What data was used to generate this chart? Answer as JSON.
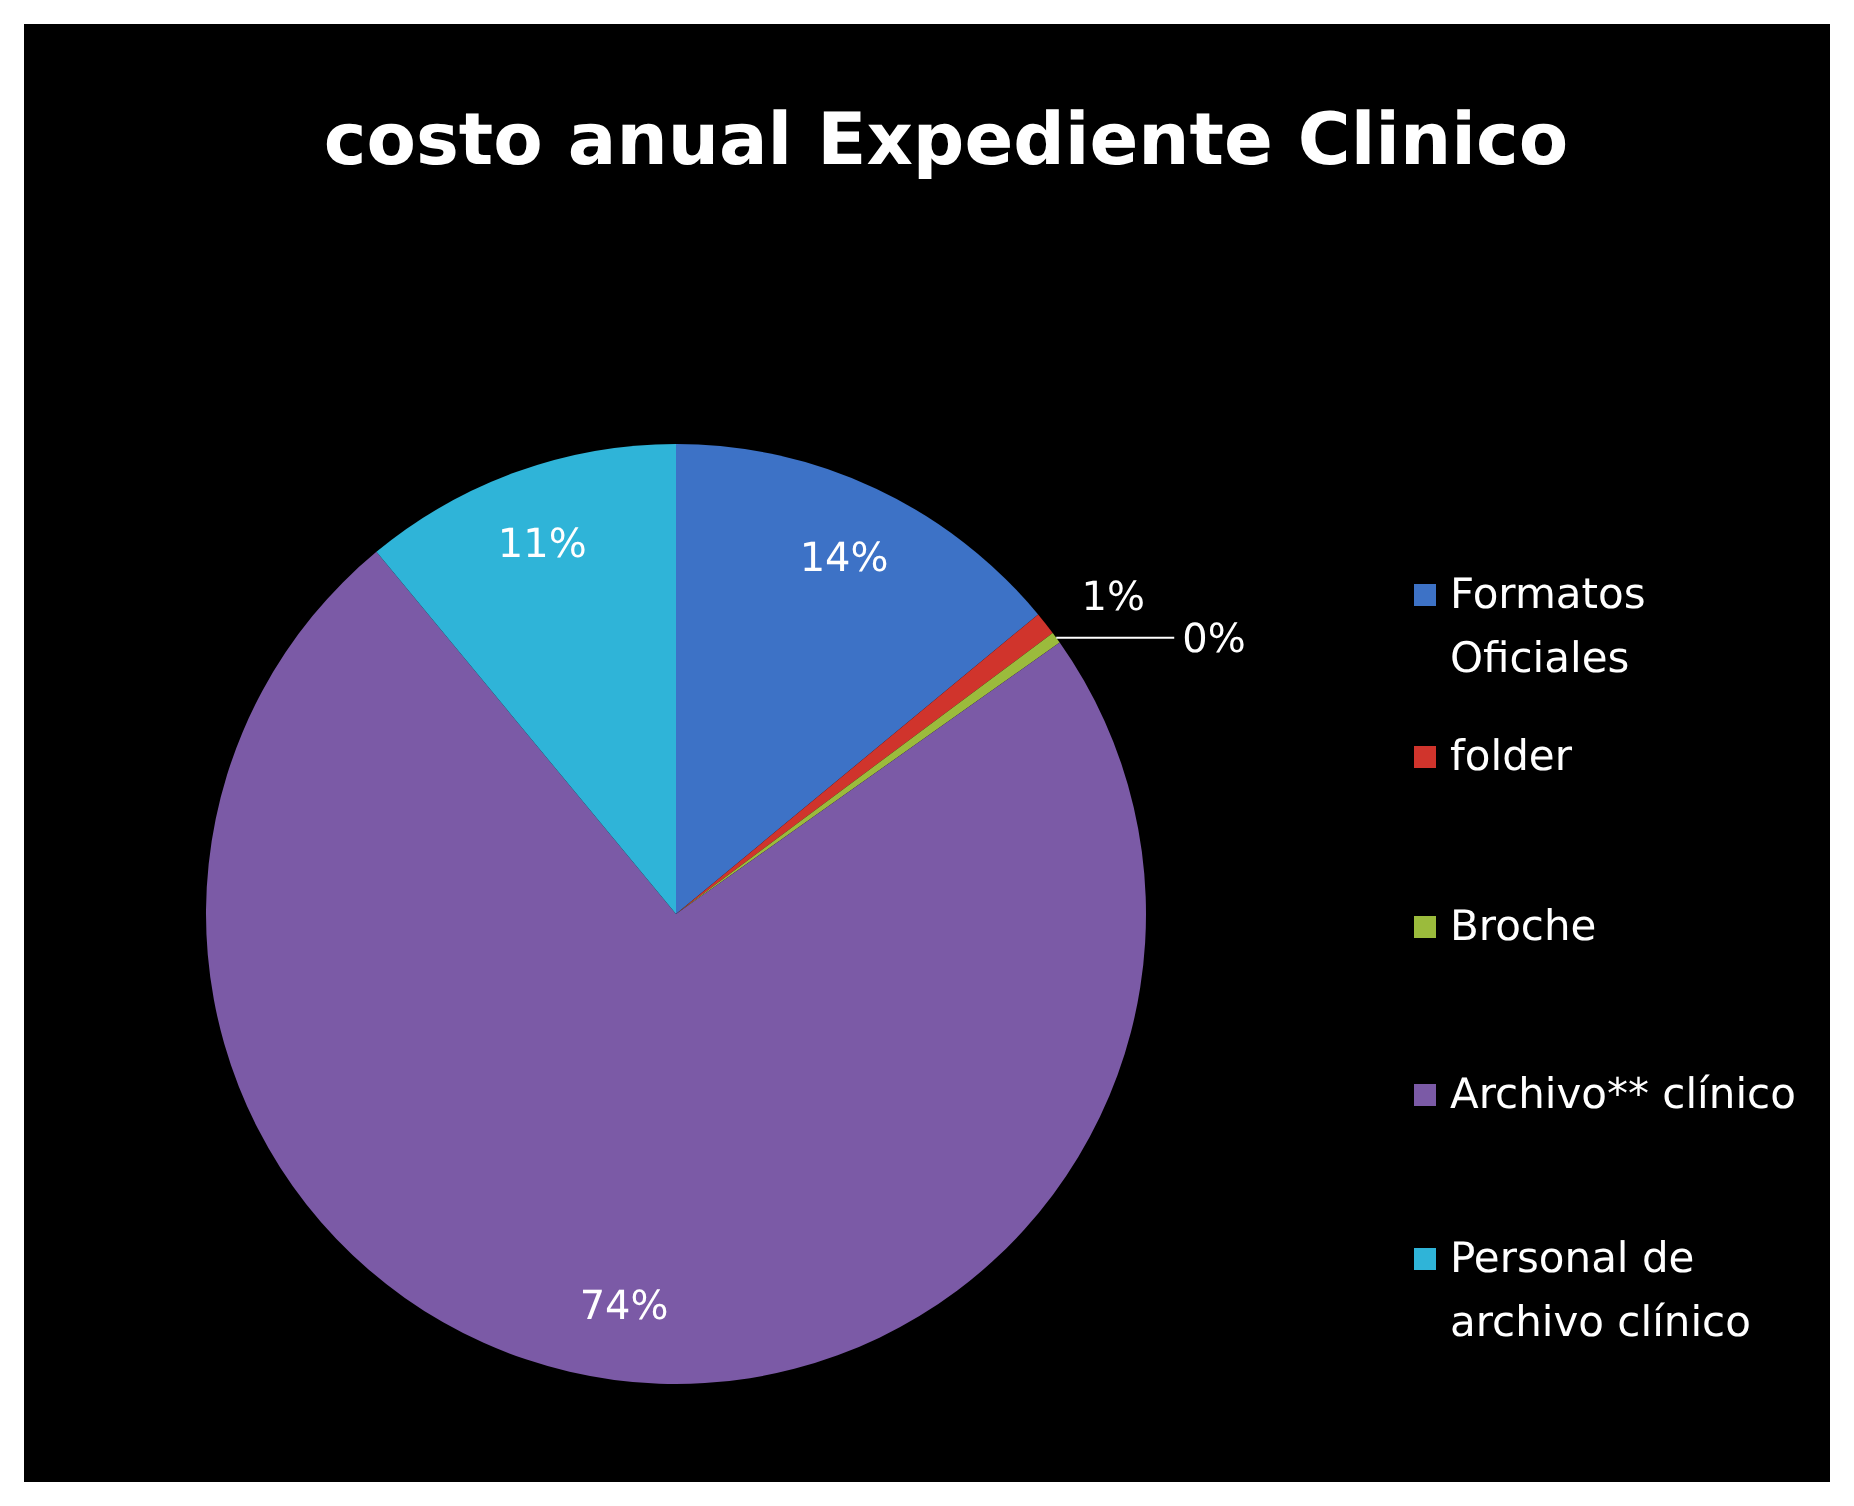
{
  "chart_data": {
    "type": "pie",
    "title": "costo anual Expediente Clinico",
    "categories": [
      "Formatos Oficiales",
      "folder",
      "Broche",
      "Archivo** clínico",
      "Personal de archivo clínico"
    ],
    "values": [
      14,
      0.8,
      0.4,
      73.8,
      11
    ],
    "colors": [
      "#3d72c6",
      "#d0342c",
      "#9bbb3c",
      "#7b5aa6",
      "#2fb4d8"
    ],
    "value_labels": [
      "14%",
      "1%",
      "0%",
      "74%",
      "11%"
    ],
    "legend": "right"
  }
}
